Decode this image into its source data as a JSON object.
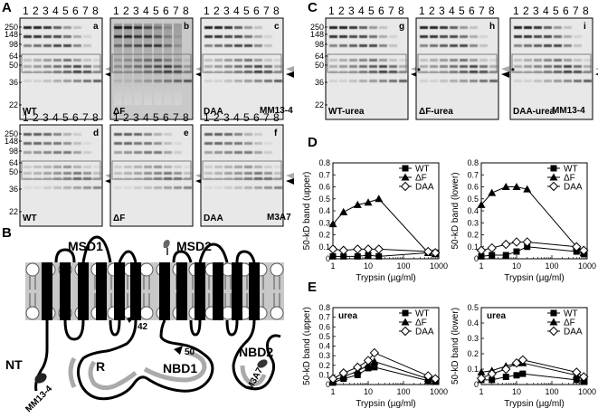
{
  "panels": {
    "A": "A",
    "B": "B",
    "C": "C",
    "D": "D",
    "E": "E"
  },
  "gels": {
    "lanes": [
      "1",
      "2",
      "3",
      "4",
      "5",
      "6",
      "7",
      "8"
    ],
    "mw_markers": [
      "250",
      "148",
      "98",
      "64",
      "50",
      "36",
      "22"
    ],
    "subpanels": [
      {
        "letter": "a",
        "label": "WT"
      },
      {
        "letter": "b",
        "label": "ΔF"
      },
      {
        "letter": "c",
        "label": "DAA"
      },
      {
        "letter": "d",
        "label": "WT"
      },
      {
        "letter": "e",
        "label": "ΔF"
      },
      {
        "letter": "f",
        "label": "DAA"
      },
      {
        "letter": "g",
        "label": "WT-urea"
      },
      {
        "letter": "h",
        "label": "ΔF-urea"
      },
      {
        "letter": "i",
        "label": "DAA-urea"
      }
    ],
    "antibody_top": "MM13-4",
    "antibody_bottom": "M3A7",
    "antibody_c": "MM13-4",
    "asterisk": "*"
  },
  "diagram": {
    "msd1": "MSD1",
    "msd2": "MSD2",
    "nt": "NT",
    "r": "R",
    "nbd1": "NBD1",
    "nbd2": "NBD2",
    "site42": "42",
    "site50": "50",
    "mm13": "MM13-4",
    "m3a7": "M3A7"
  },
  "chart_data": [
    {
      "type": "line",
      "panel": "D",
      "xlabel": "Trypsin (µg/ml)",
      "ylabel": "50-kD band (upper)",
      "xscale": "log",
      "xlim": [
        1,
        1000
      ],
      "ylim": [
        0,
        0.8
      ],
      "xticks": [
        "1",
        "10",
        "100",
        "1000"
      ],
      "yticks": [
        "0",
        "0.1",
        "0.2",
        "0.3",
        "0.4",
        "0.5",
        "0.6",
        "0.7",
        "0.8"
      ],
      "legend": "top-right",
      "series": [
        {
          "name": "WT",
          "marker": "square",
          "x": [
            1,
            2,
            5,
            10,
            20,
            500,
            800
          ],
          "y": [
            0.02,
            0.02,
            0.02,
            0.03,
            0.02,
            0.05,
            0.05
          ]
        },
        {
          "name": "ΔF",
          "marker": "triangle",
          "x": [
            1,
            2,
            5,
            10,
            20,
            500,
            800
          ],
          "y": [
            0.29,
            0.39,
            0.45,
            0.47,
            0.5,
            0.05,
            0.04
          ]
        },
        {
          "name": "DAA",
          "marker": "diamond",
          "x": [
            1,
            2,
            5,
            10,
            20,
            500,
            800
          ],
          "y": [
            0.08,
            0.07,
            0.08,
            0.08,
            0.08,
            0.06,
            0.05
          ]
        }
      ]
    },
    {
      "type": "line",
      "panel": "D",
      "xlabel": "Trypsin (µg/ml)",
      "ylabel": "50-kD band (lower)",
      "xscale": "log",
      "xlim": [
        1,
        1000
      ],
      "ylim": [
        0,
        0.8
      ],
      "xticks": [
        "1",
        "10",
        "100",
        "1000"
      ],
      "yticks": [
        "0",
        "0.1",
        "0.2",
        "0.3",
        "0.4",
        "0.5",
        "0.6",
        "0.7",
        "0.8"
      ],
      "legend": "top-right",
      "series": [
        {
          "name": "WT",
          "marker": "square",
          "x": [
            1,
            2,
            5,
            10,
            20,
            500,
            800
          ],
          "y": [
            0.02,
            0.03,
            0.03,
            0.06,
            0.1,
            0.06,
            0.04
          ]
        },
        {
          "name": "ΔF",
          "marker": "triangle",
          "x": [
            1,
            2,
            5,
            10,
            20,
            500,
            800
          ],
          "y": [
            0.45,
            0.55,
            0.6,
            0.6,
            0.58,
            0.1,
            0.05
          ]
        },
        {
          "name": "DAA",
          "marker": "diamond",
          "x": [
            1,
            2,
            5,
            10,
            20,
            500,
            800
          ],
          "y": [
            0.07,
            0.09,
            0.12,
            0.14,
            0.14,
            0.1,
            0.07
          ]
        }
      ]
    },
    {
      "type": "line",
      "panel": "E",
      "title": "urea",
      "xlabel": "Trypsin (µg/ml)",
      "ylabel": "50-kD band (upper)",
      "xscale": "log",
      "xlim": [
        1,
        1000
      ],
      "ylim": [
        0,
        0.8
      ],
      "xticks": [
        "1",
        "10",
        "100",
        "1000"
      ],
      "yticks": [
        "0",
        "0.1",
        "0.2",
        "0.3",
        "0.4",
        "0.5",
        "0.6",
        "0.7",
        "0.8"
      ],
      "legend": "top-right",
      "series": [
        {
          "name": "WT",
          "marker": "square",
          "x": [
            1,
            2,
            5,
            10,
            15,
            500,
            800
          ],
          "y": [
            0.02,
            0.06,
            0.1,
            0.17,
            0.18,
            0.04,
            0.03
          ]
        },
        {
          "name": "ΔF",
          "marker": "triangle",
          "x": [
            1,
            2,
            5,
            10,
            15,
            500,
            800
          ],
          "y": [
            0.04,
            0.08,
            0.14,
            0.2,
            0.24,
            0.06,
            0.04
          ]
        },
        {
          "name": "DAA",
          "marker": "diamond",
          "x": [
            1,
            2,
            5,
            10,
            15,
            500,
            800
          ],
          "y": [
            0.06,
            0.12,
            0.18,
            0.25,
            0.33,
            0.09,
            0.06
          ]
        }
      ]
    },
    {
      "type": "line",
      "panel": "E",
      "title": "urea",
      "xlabel": "Trypsin (µg/ml)",
      "ylabel": "50-kD band (lower)",
      "xscale": "log",
      "xlim": [
        1,
        1000
      ],
      "ylim": [
        0,
        0.5
      ],
      "xticks": [
        "1",
        "10",
        "100",
        "1000"
      ],
      "yticks": [
        "0",
        "0.1",
        "0.2",
        "0.3",
        "0.4",
        "0.5"
      ],
      "legend": "top-right",
      "series": [
        {
          "name": "WT",
          "marker": "square",
          "x": [
            1,
            2,
            5,
            10,
            15,
            500,
            800
          ],
          "y": [
            0.03,
            0.03,
            0.05,
            0.06,
            0.07,
            0.03,
            0.02
          ]
        },
        {
          "name": "ΔF",
          "marker": "triangle",
          "x": [
            1,
            2,
            5,
            10,
            15,
            500,
            800
          ],
          "y": [
            0.08,
            0.09,
            0.12,
            0.14,
            0.14,
            0.06,
            0.03
          ]
        },
        {
          "name": "DAA",
          "marker": "diamond",
          "x": [
            1,
            2,
            5,
            10,
            15,
            500,
            800
          ],
          "y": [
            0.04,
            0.07,
            0.1,
            0.14,
            0.16,
            0.08,
            0.05
          ]
        }
      ]
    }
  ]
}
